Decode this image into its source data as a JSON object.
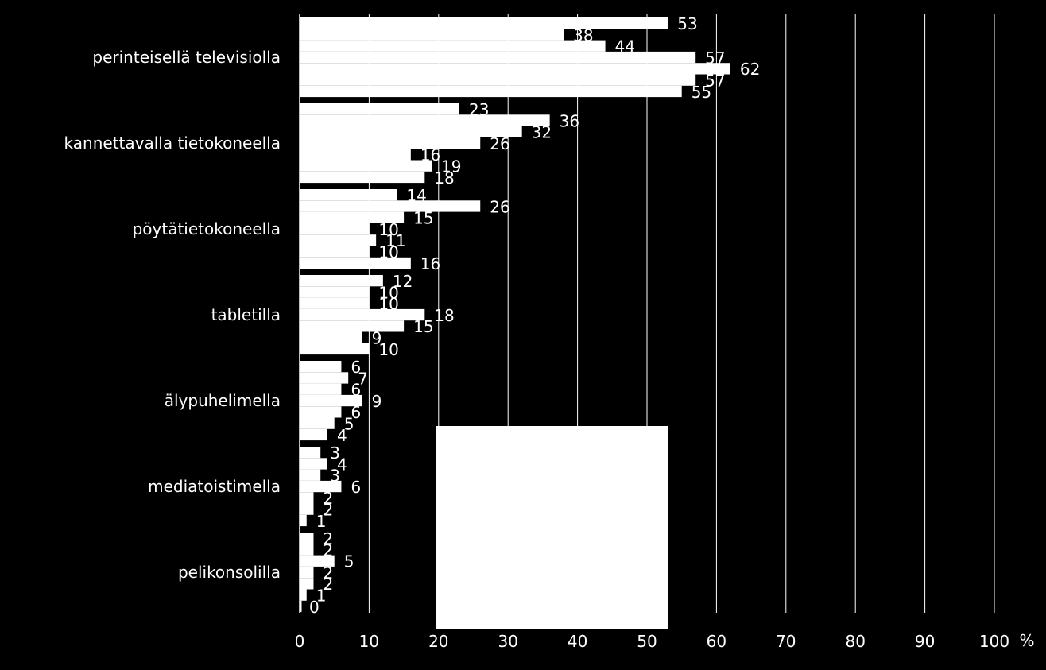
{
  "colors": {
    "background": "#000000",
    "bars": "#ffffff",
    "grid": "#ffffff",
    "text": "#ffffff"
  },
  "legend_box": {
    "color": "#ffffff"
  },
  "chart_data": {
    "type": "bar",
    "orientation": "horizontal",
    "categories": [
      "perinteisellä televisiolla",
      "kannettavalla tietokoneella",
      "pöytätietokoneella",
      "tabletilla",
      "älypuhelimella",
      "mediatoistimella",
      "pelikonsolilla"
    ],
    "values": [
      [
        53,
        38,
        44,
        57,
        62,
        57,
        55
      ],
      [
        23,
        36,
        32,
        26,
        16,
        19,
        18
      ],
      [
        14,
        26,
        15,
        10,
        11,
        10,
        16
      ],
      [
        12,
        10,
        10,
        18,
        15,
        9,
        10
      ],
      [
        6,
        7,
        6,
        9,
        6,
        5,
        4
      ],
      [
        3,
        4,
        3,
        6,
        2,
        2,
        1
      ],
      [
        2,
        2,
        5,
        2,
        2,
        1,
        0
      ]
    ],
    "xlim": [
      0,
      100
    ],
    "xticks": [
      "0",
      "10",
      "20",
      "30",
      "40",
      "50",
      "60",
      "70",
      "80",
      "90",
      "100"
    ],
    "xunit": "%",
    "grid": true
  }
}
